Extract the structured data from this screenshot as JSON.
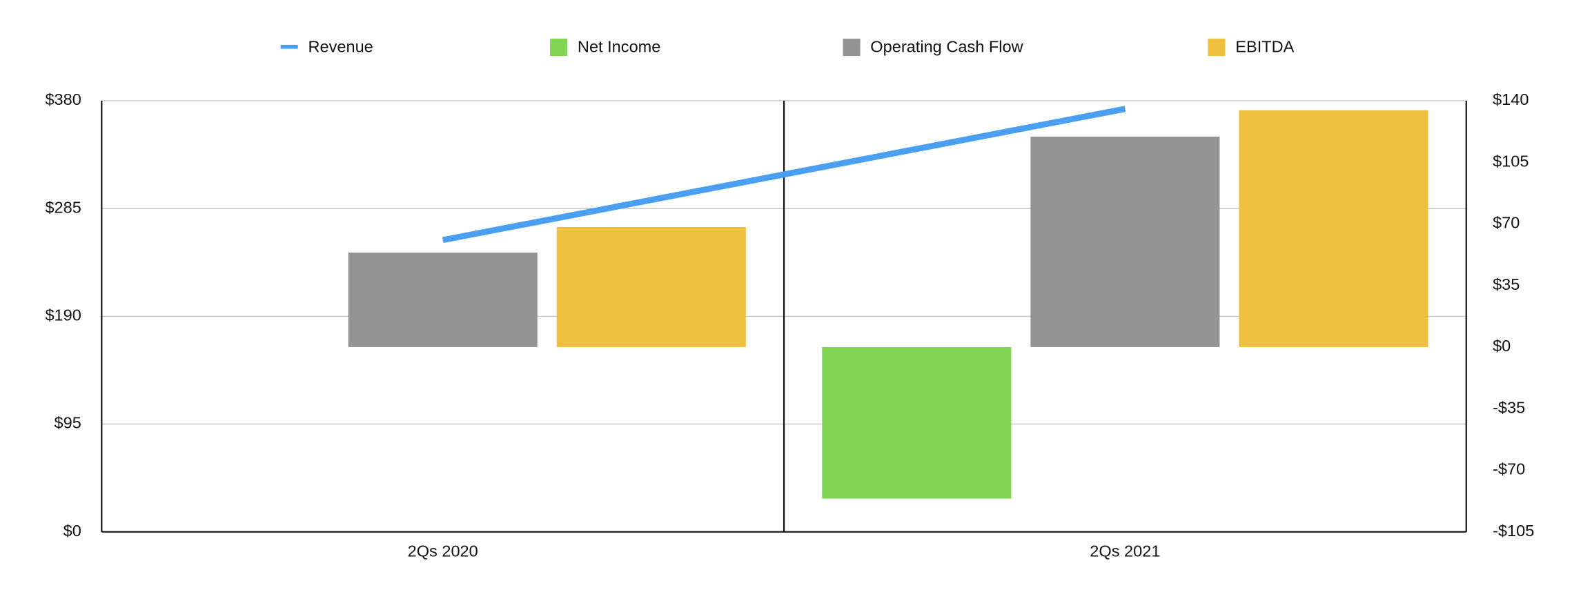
{
  "chart_data": {
    "type": "bar",
    "categories": [
      "2Qs 2020",
      "2Qs 2021"
    ],
    "series": [
      {
        "name": "Revenue",
        "type": "line",
        "axis": "y",
        "color": "#4a9ff0",
        "values": [
          257.2,
          372.8
        ]
      },
      {
        "name": "Net Income",
        "type": "bar",
        "axis": "y2",
        "color": "#82d553",
        "values": [
          null,
          -86.1
        ]
      },
      {
        "name": "Operating Cash Flow",
        "type": "bar",
        "axis": "y2",
        "color": "#949494",
        "values": [
          53.7,
          119.6
        ]
      },
      {
        "name": "EBITDA",
        "type": "bar",
        "axis": "y2",
        "color": "#efbf40",
        "values": [
          68.2,
          134.6
        ]
      }
    ],
    "ylim": [
      0,
      380
    ],
    "yticks": [
      {
        "value": 0,
        "label": "$0"
      },
      {
        "value": 95,
        "label": "$95"
      },
      {
        "value": 190,
        "label": "$190"
      },
      {
        "value": 285,
        "label": "$285"
      },
      {
        "value": 380,
        "label": "$380"
      }
    ],
    "y2lim": [
      -105,
      140
    ],
    "y2ticks": [
      {
        "value": -105,
        "label": "-$105"
      },
      {
        "value": -70,
        "label": "-$70"
      },
      {
        "value": -35,
        "label": "-$35"
      },
      {
        "value": 0,
        "label": "$0"
      },
      {
        "value": 35,
        "label": "$35"
      },
      {
        "value": 70,
        "label": "$70"
      },
      {
        "value": 105,
        "label": "$105"
      },
      {
        "value": 140,
        "label": "$140"
      }
    ],
    "grid": true,
    "legend": "top"
  }
}
